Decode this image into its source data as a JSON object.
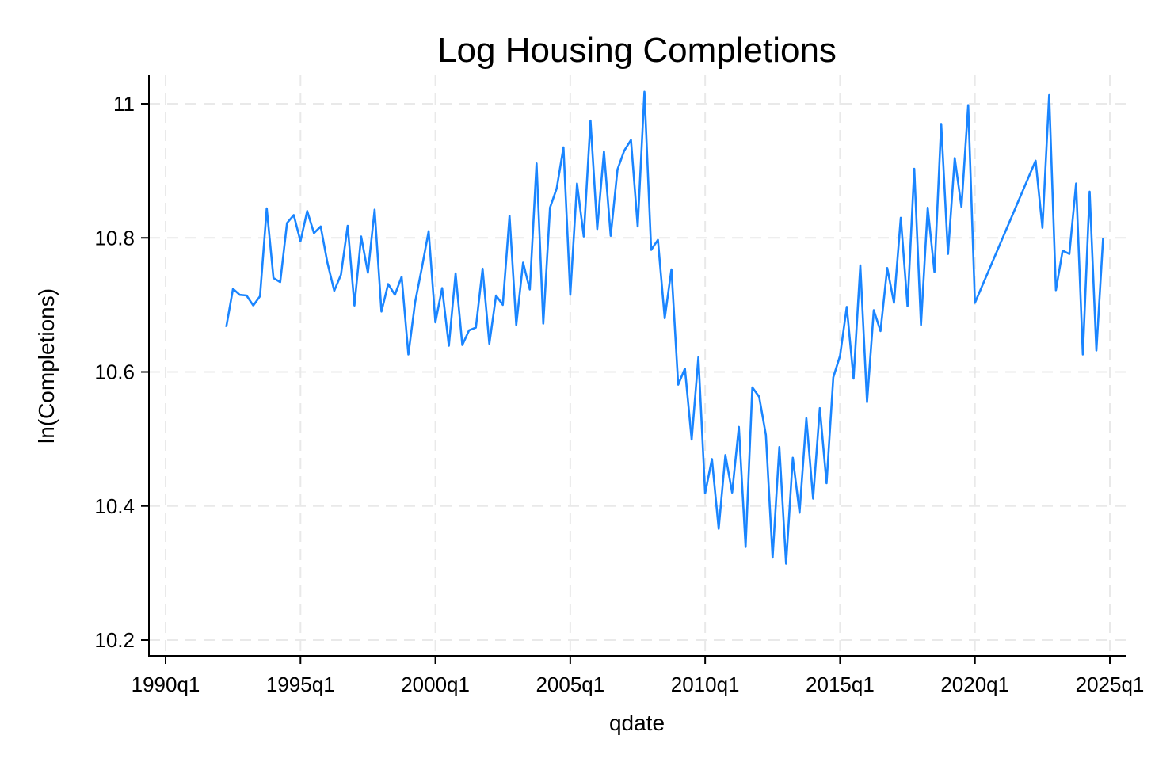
{
  "chart_data": {
    "type": "line",
    "title": "Log Housing Completions",
    "xlabel": "qdate",
    "ylabel": "ln(Completions)",
    "x_ticks": [
      "1990q1",
      "1995q1",
      "2000q1",
      "2005q1",
      "2010q1",
      "2015q1",
      "2020q1",
      "2025q1"
    ],
    "y_ticks": [
      "10.2",
      "10.4",
      "10.6",
      "10.8",
      "11"
    ],
    "xlim": [
      "1990q1",
      "2025q1"
    ],
    "ylim": [
      10.2,
      11.0
    ],
    "grid": true,
    "line_color": "#1a85ff",
    "series": [
      {
        "x": [
          "1992q2",
          "1992q3",
          "1992q4",
          "1993q1",
          "1993q2",
          "1993q3",
          "1993q4",
          "1994q1",
          "1994q2",
          "1994q3",
          "1994q4",
          "1995q1",
          "1995q2",
          "1995q3",
          "1995q4",
          "1996q1",
          "1996q2",
          "1996q3",
          "1996q4",
          "1997q1",
          "1997q2",
          "1997q3",
          "1997q4",
          "1998q1",
          "1998q2",
          "1998q3",
          "1998q4",
          "1999q1",
          "1999q2",
          "1999q3",
          "1999q4",
          "2000q1",
          "2000q2",
          "2000q3",
          "2000q4",
          "2001q1",
          "2001q2",
          "2001q3",
          "2001q4",
          "2002q1",
          "2002q2",
          "2002q3",
          "2002q4",
          "2003q1",
          "2003q2",
          "2003q3",
          "2003q4",
          "2004q1",
          "2004q2",
          "2004q3",
          "2004q4",
          "2005q1",
          "2005q2",
          "2005q3",
          "2005q4",
          "2006q1",
          "2006q2",
          "2006q3",
          "2006q4",
          "2007q1",
          "2007q2",
          "2007q3",
          "2007q4",
          "2008q1",
          "2008q2",
          "2008q3",
          "2008q4",
          "2009q1",
          "2009q2",
          "2009q3",
          "2009q4",
          "2010q1",
          "2010q2",
          "2010q3",
          "2010q4",
          "2011q1",
          "2011q2",
          "2011q3",
          "2011q4",
          "2012q1",
          "2012q2",
          "2012q3",
          "2012q4",
          "2013q1",
          "2013q2",
          "2013q3",
          "2013q4",
          "2014q1",
          "2014q2",
          "2014q3",
          "2014q4",
          "2015q1",
          "2015q2",
          "2015q3",
          "2015q4",
          "2016q1",
          "2016q2",
          "2016q3",
          "2016q4",
          "2017q1",
          "2017q2",
          "2017q3",
          "2017q4",
          "2018q1",
          "2018q2",
          "2018q3",
          "2018q4",
          "2019q1",
          "2019q2",
          "2019q3",
          "2019q4",
          "2020q1",
          "2022q2",
          "2022q3",
          "2022q4",
          "2023q1",
          "2023q2",
          "2023q3",
          "2023q4",
          "2024q1",
          "2024q2",
          "2024q3",
          "2024q4"
        ],
        "y": [
          10.667,
          10.724,
          10.715,
          10.714,
          10.699,
          10.713,
          10.844,
          10.74,
          10.734,
          10.822,
          10.834,
          10.795,
          10.84,
          10.807,
          10.817,
          10.763,
          10.721,
          10.745,
          10.818,
          10.699,
          10.802,
          10.748,
          10.842,
          10.69,
          10.731,
          10.715,
          10.742,
          10.626,
          10.704,
          10.755,
          10.81,
          10.674,
          10.725,
          10.639,
          10.747,
          10.64,
          10.662,
          10.666,
          10.754,
          10.642,
          10.714,
          10.7,
          10.833,
          10.67,
          10.763,
          10.723,
          10.911,
          10.672,
          10.845,
          10.874,
          10.935,
          10.715,
          10.881,
          10.802,
          10.975,
          10.813,
          10.929,
          10.803,
          10.902,
          10.93,
          10.946,
          10.817,
          11.018,
          10.782,
          10.797,
          10.68,
          10.753,
          10.581,
          10.605,
          10.499,
          10.622,
          10.419,
          10.47,
          10.366,
          10.476,
          10.42,
          10.518,
          10.339,
          10.577,
          10.563,
          10.506,
          10.323,
          10.488,
          10.314,
          10.472,
          10.39,
          10.531,
          10.411,
          10.546,
          10.434,
          10.592,
          10.624,
          10.697,
          10.59,
          10.759,
          10.555,
          10.692,
          10.661,
          10.755,
          10.703,
          10.83,
          10.698,
          10.903,
          10.67,
          10.845,
          10.749,
          10.97,
          10.776,
          10.919,
          10.846,
          10.998,
          10.703,
          10.915,
          10.815,
          11.013,
          10.722,
          10.781,
          10.776,
          10.881,
          10.626,
          10.869,
          10.632,
          10.8
        ]
      }
    ]
  }
}
